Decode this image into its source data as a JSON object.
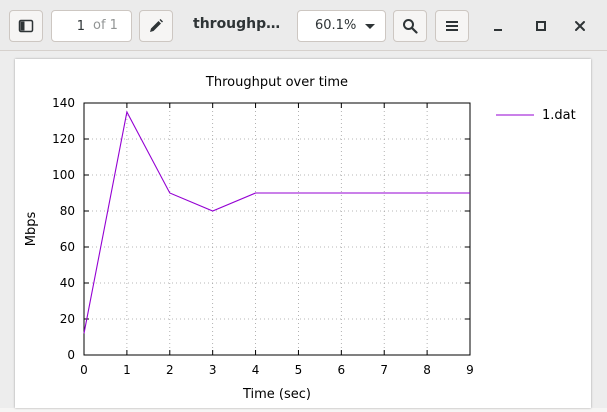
{
  "header": {
    "page_number": "1",
    "page_of": "of 1",
    "doc_title": "throughp…",
    "zoom": "60.1%"
  },
  "icons": {
    "sidebar": "sidebar-icon",
    "annotate": "pencil-icon",
    "zoom_dropdown": "chevron-down-icon",
    "search": "search-icon",
    "menu": "hamburger-menu-icon",
    "minimize": "minimize-icon",
    "maximize": "maximize-icon",
    "close": "close-icon"
  },
  "colors": {
    "series": "#9400d3",
    "grid": "#a0a0a0"
  },
  "chart_data": {
    "type": "line",
    "title": "Throughput over time",
    "xlabel": "Time (sec)",
    "ylabel": "Mbps",
    "xlim": [
      0,
      9
    ],
    "ylim": [
      0,
      140
    ],
    "xticks": [
      0,
      1,
      2,
      3,
      4,
      5,
      6,
      7,
      8,
      9
    ],
    "yticks": [
      0,
      20,
      40,
      60,
      80,
      100,
      120,
      140
    ],
    "grid": true,
    "legend_position": "top-right outside",
    "series": [
      {
        "name": "1.dat",
        "x": [
          0,
          1,
          2,
          3,
          4,
          5,
          6,
          7,
          8,
          9
        ],
        "y": [
          12,
          135,
          90,
          80,
          90,
          90,
          90,
          90,
          90,
          90
        ]
      }
    ]
  }
}
